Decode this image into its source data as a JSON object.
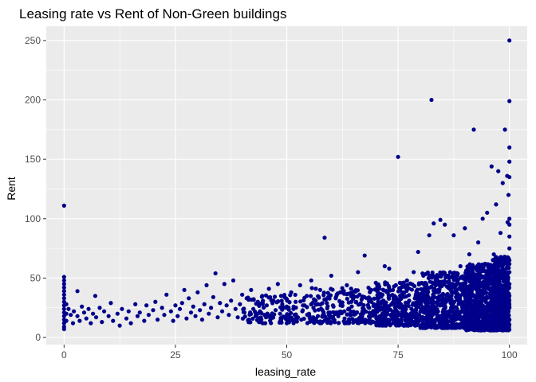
{
  "chart_data": {
    "type": "scatter",
    "title": "Leasing rate vs Rent of Non-Green buildings",
    "xlabel": "leasing_rate",
    "ylabel": "Rent",
    "xlim": [
      -4,
      104
    ],
    "ylim": [
      -6,
      262
    ],
    "x_ticks": [
      0,
      25,
      50,
      75,
      100
    ],
    "y_ticks": [
      0,
      50,
      100,
      150,
      200,
      250
    ],
    "x_tick_labels": [
      "0",
      "25",
      "50",
      "75",
      "100"
    ],
    "y_tick_labels": [
      "0",
      "50",
      "100",
      "150",
      "200",
      "250"
    ],
    "grid": true,
    "legend": "none",
    "colors": {
      "point": "#00008b",
      "panel": "#ebebeb",
      "grid": "#ffffff"
    },
    "points": [
      [
        0,
        111
      ],
      [
        0,
        51
      ],
      [
        0,
        48
      ],
      [
        0,
        45
      ],
      [
        0,
        42
      ],
      [
        0,
        39
      ],
      [
        0,
        36
      ],
      [
        0,
        33
      ],
      [
        0,
        30
      ],
      [
        0,
        27
      ],
      [
        0,
        24
      ],
      [
        0,
        21
      ],
      [
        0,
        18
      ],
      [
        0,
        15
      ],
      [
        0,
        12
      ],
      [
        0,
        9
      ],
      [
        0,
        7
      ],
      [
        0.5,
        28
      ],
      [
        0.5,
        20
      ],
      [
        0.5,
        14
      ],
      [
        1,
        24
      ],
      [
        1.5,
        19
      ],
      [
        2,
        12
      ],
      [
        2.2,
        22
      ],
      [
        3,
        39
      ],
      [
        3,
        18
      ],
      [
        3.5,
        14
      ],
      [
        4,
        26
      ],
      [
        4.5,
        21
      ],
      [
        5,
        16
      ],
      [
        5.5,
        24
      ],
      [
        6,
        12
      ],
      [
        6.5,
        20
      ],
      [
        7,
        35
      ],
      [
        7.2,
        17
      ],
      [
        8,
        25
      ],
      [
        8.5,
        13
      ],
      [
        9,
        22
      ],
      [
        10,
        18
      ],
      [
        10.5,
        29
      ],
      [
        11,
        14
      ],
      [
        12,
        20
      ],
      [
        12.5,
        10
      ],
      [
        13,
        24
      ],
      [
        14,
        16
      ],
      [
        14.5,
        22
      ],
      [
        15,
        12
      ],
      [
        16,
        28
      ],
      [
        16.5,
        18
      ],
      [
        17,
        21
      ],
      [
        18,
        14
      ],
      [
        18.5,
        27
      ],
      [
        19,
        19
      ],
      [
        20,
        23
      ],
      [
        20.5,
        30
      ],
      [
        21,
        15
      ],
      [
        22,
        25
      ],
      [
        22.5,
        19
      ],
      [
        23,
        36
      ],
      [
        24,
        22
      ],
      [
        24.5,
        14
      ],
      [
        25,
        27
      ],
      [
        25.5,
        18
      ],
      [
        26,
        24
      ],
      [
        26.5,
        29
      ],
      [
        27,
        40
      ],
      [
        27.5,
        16
      ],
      [
        28,
        33
      ],
      [
        28.5,
        21
      ],
      [
        29,
        26
      ],
      [
        29.5,
        18
      ],
      [
        30,
        38
      ],
      [
        30.5,
        23
      ],
      [
        31,
        15
      ],
      [
        31.5,
        28
      ],
      [
        32,
        44
      ],
      [
        32.5,
        20
      ],
      [
        33,
        25
      ],
      [
        33.5,
        34
      ],
      [
        34,
        54
      ],
      [
        34.5,
        17
      ],
      [
        35,
        29
      ],
      [
        35.5,
        22
      ],
      [
        36,
        45
      ],
      [
        36.5,
        27
      ],
      [
        37,
        19
      ],
      [
        37.5,
        31
      ],
      [
        38,
        48
      ],
      [
        38.5,
        24
      ],
      [
        39,
        17
      ],
      [
        39.5,
        28
      ],
      [
        40,
        36
      ],
      [
        40.5,
        21
      ],
      [
        41,
        33
      ],
      [
        41.5,
        15
      ],
      [
        42,
        40
      ],
      [
        42.5,
        24
      ],
      [
        43,
        18
      ],
      [
        43.5,
        30
      ],
      [
        44,
        22
      ],
      [
        44.5,
        35
      ],
      [
        45,
        19
      ],
      [
        45.5,
        27
      ],
      [
        46,
        41
      ],
      [
        46.5,
        16
      ],
      [
        47,
        31
      ],
      [
        47.5,
        23
      ],
      [
        48,
        45
      ],
      [
        48.5,
        20
      ],
      [
        49,
        28
      ],
      [
        49.5,
        34
      ],
      [
        50,
        26
      ],
      [
        50.5,
        18
      ],
      [
        51,
        38
      ],
      [
        51.5,
        24
      ],
      [
        52,
        30
      ],
      [
        52.5,
        17
      ],
      [
        53,
        44
      ],
      [
        53.5,
        22
      ],
      [
        54,
        27
      ],
      [
        54.5,
        35
      ],
      [
        55,
        20
      ],
      [
        55.5,
        48
      ],
      [
        56,
        25
      ],
      [
        56.5,
        31
      ],
      [
        57,
        18
      ],
      [
        57.5,
        40
      ],
      [
        58,
        23
      ],
      [
        58.5,
        84
      ],
      [
        59,
        29
      ],
      [
        59.5,
        19
      ],
      [
        60,
        52
      ],
      [
        60.5,
        26
      ],
      [
        61,
        33
      ],
      [
        61.5,
        21
      ],
      [
        62,
        38
      ],
      [
        62.5,
        27
      ],
      [
        63,
        16
      ],
      [
        63.5,
        44
      ],
      [
        64,
        24
      ],
      [
        64.5,
        30
      ],
      [
        65,
        35
      ],
      [
        65.5,
        20
      ],
      [
        66,
        55
      ],
      [
        66.5,
        28
      ],
      [
        67,
        22
      ],
      [
        67.5,
        69
      ],
      [
        68,
        33
      ],
      [
        68.5,
        25
      ],
      [
        69,
        40
      ],
      [
        69.5,
        19
      ],
      [
        70,
        46
      ],
      [
        70.5,
        30
      ],
      [
        71,
        24
      ],
      [
        71.5,
        36
      ],
      [
        72,
        60
      ],
      [
        72.5,
        21
      ],
      [
        73,
        58
      ],
      [
        73.5,
        28
      ],
      [
        74,
        34
      ],
      [
        74.5,
        44
      ],
      [
        75,
        152
      ],
      [
        75.5,
        26
      ],
      [
        76,
        38
      ],
      [
        76.5,
        22
      ],
      [
        77,
        48
      ],
      [
        77.5,
        31
      ],
      [
        78,
        24
      ],
      [
        78.5,
        55
      ],
      [
        79,
        29
      ],
      [
        79.5,
        72
      ],
      [
        80,
        35
      ],
      [
        80.5,
        23
      ],
      [
        81,
        40
      ],
      [
        81.5,
        26
      ],
      [
        82,
        86
      ],
      [
        82.5,
        200
      ],
      [
        83,
        96
      ],
      [
        83.5,
        44
      ],
      [
        84,
        32
      ],
      [
        84.5,
        99
      ],
      [
        85,
        27
      ],
      [
        85.5,
        95
      ],
      [
        86,
        52
      ],
      [
        86.5,
        34
      ],
      [
        87,
        28
      ],
      [
        87.5,
        86
      ],
      [
        88,
        44
      ],
      [
        88.5,
        31
      ],
      [
        89,
        60
      ],
      [
        89.5,
        25
      ],
      [
        90,
        92
      ],
      [
        90.5,
        40
      ],
      [
        91,
        70
      ],
      [
        91.5,
        35
      ],
      [
        92,
        175
      ],
      [
        92.5,
        48
      ],
      [
        93,
        80
      ],
      [
        93.5,
        29
      ],
      [
        94,
        100
      ],
      [
        94.5,
        62
      ],
      [
        95,
        105
      ],
      [
        95.5,
        45
      ],
      [
        96,
        144
      ],
      [
        96.5,
        70
      ],
      [
        97,
        112
      ],
      [
        97.5,
        140
      ],
      [
        98,
        88
      ],
      [
        98.5,
        130
      ],
      [
        99,
        175
      ],
      [
        99.5,
        136
      ],
      [
        100,
        250
      ],
      [
        100,
        199
      ],
      [
        100,
        160
      ],
      [
        100,
        148
      ],
      [
        100,
        135
      ],
      [
        100,
        100
      ],
      [
        100,
        95
      ],
      [
        100,
        85
      ],
      [
        100,
        75
      ],
      [
        100,
        65
      ],
      [
        100,
        55
      ],
      [
        100,
        45
      ],
      [
        100,
        35
      ],
      [
        100,
        25
      ],
      [
        100,
        15
      ],
      [
        99.8,
        120
      ],
      [
        99.6,
        97
      ]
    ],
    "dense_band": [
      {
        "x": [
          40,
          55
        ],
        "y": [
          12,
          36
        ],
        "n": 120
      },
      {
        "x": [
          55,
          70
        ],
        "y": [
          12,
          42
        ],
        "n": 200
      },
      {
        "x": [
          70,
          80
        ],
        "y": [
          10,
          48
        ],
        "n": 320
      },
      {
        "x": [
          80,
          90
        ],
        "y": [
          8,
          55
        ],
        "n": 520
      },
      {
        "x": [
          90,
          96
        ],
        "y": [
          6,
          62
        ],
        "n": 560
      },
      {
        "x": [
          96,
          100
        ],
        "y": [
          6,
          68
        ],
        "n": 620
      }
    ]
  }
}
